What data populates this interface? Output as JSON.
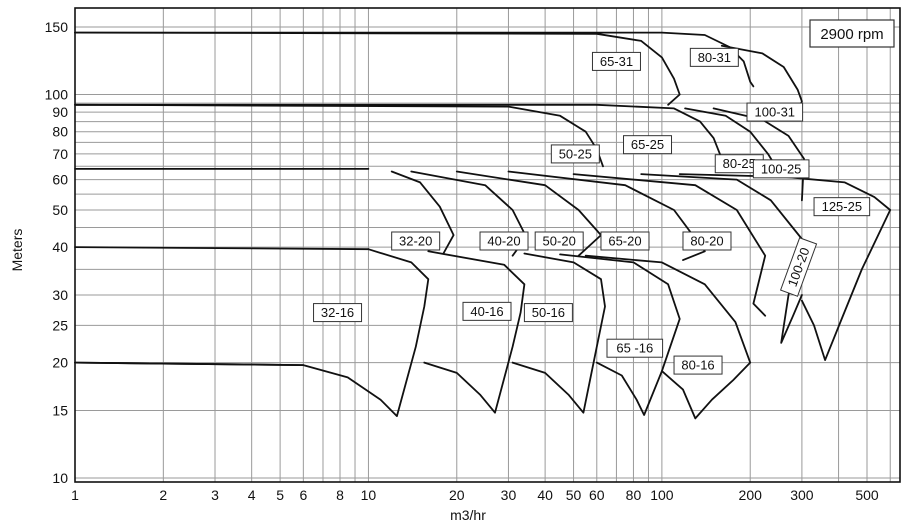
{
  "chart_data": {
    "type": "line",
    "title": "",
    "annotation": "2900 rpm",
    "xlabel": "m3/hr",
    "ylabel": "Meters",
    "xscale": "log",
    "yscale": "log",
    "xlim": [
      1,
      800
    ],
    "ylim": [
      10,
      160
    ],
    "x_ticks": [
      1,
      2,
      3,
      4,
      5,
      6,
      8,
      10,
      20,
      30,
      40,
      50,
      60,
      80,
      100,
      200,
      300,
      500
    ],
    "x_tick_labels": [
      "1",
      "2",
      "3",
      "4",
      "5",
      "6",
      "8",
      "10",
      "20",
      "30",
      "40",
      "50",
      "60",
      "80",
      "100",
      "200",
      "300",
      "500"
    ],
    "y_ticks": [
      10,
      15,
      20,
      25,
      30,
      40,
      50,
      60,
      70,
      80,
      90,
      100,
      150
    ],
    "y_tick_labels": [
      "10",
      "15",
      "20",
      "25",
      "30",
      "40",
      "50",
      "60",
      "70",
      "80",
      "90",
      "100",
      "150"
    ],
    "grid": true,
    "families": [
      {
        "shutoff_head": 145,
        "bound_points": [
          [
            1,
            145
          ],
          [
            100,
            145
          ]
        ]
      },
      {
        "shutoff_head": 94,
        "bound_points": [
          [
            1,
            94
          ],
          [
            60,
            94
          ]
        ]
      },
      {
        "shutoff_head": 64,
        "bound_points": [
          [
            1,
            64
          ],
          [
            10,
            64
          ]
        ]
      },
      {
        "shutoff_head": 40,
        "bound_points": [
          [
            1,
            40
          ],
          [
            10,
            39.5
          ]
        ]
      },
      {
        "shutoff_head": 20,
        "bound_points": [
          [
            1,
            20
          ],
          [
            6,
            19.7
          ]
        ]
      }
    ],
    "series": [
      {
        "name": "32-16",
        "label_at": [
          6.5,
          27
        ],
        "points": [
          [
            1,
            20
          ],
          [
            6,
            19.7
          ],
          [
            8.5,
            18.3
          ],
          [
            11,
            16
          ],
          [
            12.5,
            14.5
          ],
          [
            14.5,
            22
          ],
          [
            15.5,
            28
          ],
          [
            16,
            33
          ],
          [
            14,
            36.5
          ],
          [
            10,
            39.5
          ]
        ]
      },
      {
        "name": "40-16",
        "label_at": [
          21,
          27.2
        ],
        "points": [
          [
            15.5,
            20
          ],
          [
            20,
            18.8
          ],
          [
            24,
            16.5
          ],
          [
            27,
            14.8
          ],
          [
            31,
            22
          ],
          [
            33,
            27
          ],
          [
            34,
            32
          ],
          [
            29,
            36
          ],
          [
            16,
            39
          ]
        ]
      },
      {
        "name": "50-16",
        "label_at": [
          34,
          27
        ],
        "points": [
          [
            31,
            20
          ],
          [
            40,
            18.8
          ],
          [
            48,
            16.5
          ],
          [
            54,
            14.8
          ],
          [
            60,
            22
          ],
          [
            64,
            28
          ],
          [
            62,
            33
          ],
          [
            50,
            36.5
          ],
          [
            34,
            38.5
          ]
        ]
      },
      {
        "name": "65 -16",
        "label_at": [
          65,
          21.8
        ],
        "points": [
          [
            60,
            20
          ],
          [
            73,
            18.5
          ],
          [
            82,
            16
          ],
          [
            87,
            14.6
          ],
          [
            100,
            19
          ],
          [
            115,
            26
          ],
          [
            105,
            32
          ],
          [
            80,
            36.5
          ],
          [
            45,
            38.3
          ]
        ]
      },
      {
        "name": "80-16",
        "label_at": [
          110,
          19.7
        ],
        "points": [
          [
            100,
            19
          ],
          [
            118,
            17
          ],
          [
            130,
            14.3
          ],
          [
            148,
            16
          ],
          [
            175,
            18
          ],
          [
            200,
            20
          ],
          [
            178,
            25.5
          ],
          [
            140,
            32
          ],
          [
            100,
            36.5
          ],
          [
            55,
            38
          ]
        ]
      },
      {
        "name": "32-20",
        "label_at": [
          12,
          41.5
        ],
        "points": [
          [
            12,
            63
          ],
          [
            15,
            59
          ],
          [
            17.5,
            51
          ],
          [
            19.5,
            43
          ],
          [
            18,
            38.5
          ]
        ]
      },
      {
        "name": "40-20",
        "label_at": [
          24,
          41.5
        ],
        "points": [
          [
            14,
            63
          ],
          [
            25,
            58
          ],
          [
            31,
            50
          ],
          [
            34.5,
            42.5
          ],
          [
            31,
            38
          ]
        ]
      },
      {
        "name": "50-20",
        "label_at": [
          37,
          41.5
        ],
        "points": [
          [
            20,
            63
          ],
          [
            40,
            58
          ],
          [
            52,
            50
          ],
          [
            62,
            43
          ],
          [
            52,
            38
          ]
        ]
      },
      {
        "name": "65-20",
        "label_at": [
          62,
          41.5
        ],
        "points": [
          [
            30,
            63
          ],
          [
            75,
            58
          ],
          [
            110,
            50
          ],
          [
            140,
            39
          ],
          [
            118,
            37
          ]
        ]
      },
      {
        "name": "80-20",
        "label_at": [
          118,
          41.5
        ],
        "points": [
          [
            50,
            62
          ],
          [
            130,
            58
          ],
          [
            180,
            50
          ],
          [
            225,
            38
          ],
          [
            205,
            28.5
          ],
          [
            225,
            26.5
          ]
        ]
      },
      {
        "name": "100-20",
        "label_at": [
          235,
          35.5
        ],
        "points": [
          [
            85,
            62
          ],
          [
            180,
            60
          ],
          [
            235,
            53
          ],
          [
            300,
            42
          ],
          [
            270,
            30
          ],
          [
            255,
            22.5
          ],
          [
            280,
            26.5
          ],
          [
            300,
            30
          ]
        ]
      },
      {
        "name": "125-25",
        "label_at": [
          330,
          51
        ],
        "points": [
          [
            115,
            62
          ],
          [
            260,
            61
          ],
          [
            420,
            59
          ],
          [
            530,
            54
          ],
          [
            600,
            50
          ],
          [
            480,
            35
          ],
          [
            410,
            26
          ],
          [
            360,
            20.3
          ],
          [
            330,
            25
          ],
          [
            300,
            29
          ]
        ]
      },
      {
        "name": "50-25",
        "label_at": [
          42,
          70
        ],
        "points": [
          [
            1,
            94
          ],
          [
            30,
            93
          ],
          [
            45,
            88
          ],
          [
            55,
            80
          ],
          [
            60,
            72
          ],
          [
            63,
            65
          ]
        ]
      },
      {
        "name": "65-25",
        "label_at": [
          74,
          74
        ],
        "points": [
          [
            60,
            94
          ],
          [
            110,
            92
          ],
          [
            135,
            85
          ],
          [
            150,
            77
          ],
          [
            160,
            68
          ],
          [
            165,
            65
          ]
        ]
      },
      {
        "name": "80-25",
        "label_at": [
          152,
          66
        ],
        "points": [
          [
            120,
            92
          ],
          [
            165,
            88
          ],
          [
            200,
            80
          ],
          [
            230,
            70
          ],
          [
            250,
            63
          ]
        ]
      },
      {
        "name": "100-25",
        "label_at": [
          205,
          64
        ],
        "points": [
          [
            150,
            92
          ],
          [
            220,
            86
          ],
          [
            270,
            78
          ],
          [
            305,
            68
          ],
          [
            300,
            53
          ]
        ]
      },
      {
        "name": "65-31",
        "label_at": [
          58,
          122
        ],
        "points": [
          [
            1,
            145
          ],
          [
            60,
            144
          ],
          [
            85,
            138
          ],
          [
            100,
            125
          ],
          [
            110,
            110
          ],
          [
            115,
            100
          ],
          [
            105,
            94
          ]
        ]
      },
      {
        "name": "80-31",
        "label_at": [
          125,
          125
        ],
        "points": [
          [
            100,
            145
          ],
          [
            140,
            143
          ],
          [
            170,
            133
          ],
          [
            190,
            122
          ],
          [
            200,
            108
          ],
          [
            205,
            105
          ]
        ]
      },
      {
        "name": "100-31",
        "label_at": [
          195,
          90
        ],
        "points": [
          [
            160,
            134
          ],
          [
            220,
            128
          ],
          [
            260,
            118
          ],
          [
            290,
            103
          ],
          [
            300,
            96
          ],
          [
            290,
            90
          ]
        ]
      }
    ]
  }
}
